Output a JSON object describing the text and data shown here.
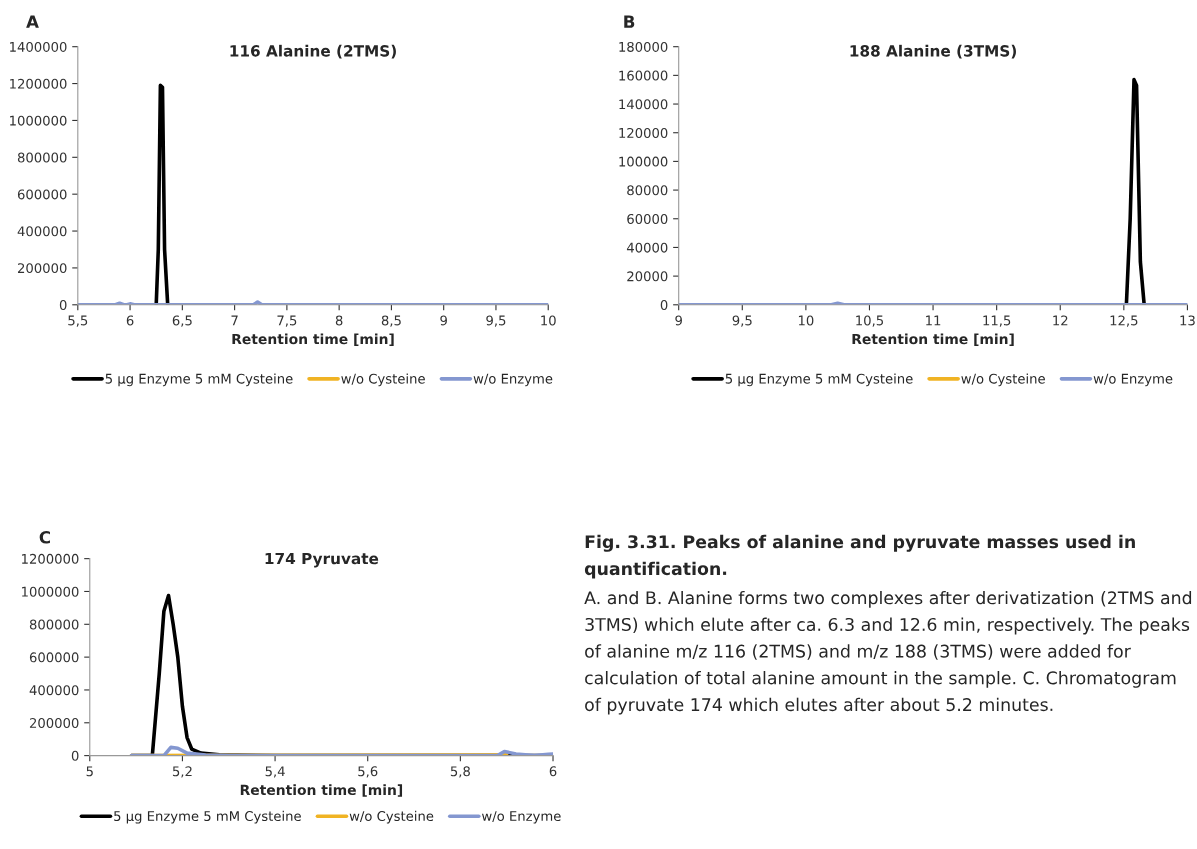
{
  "chart_data": [
    {
      "type": "line",
      "title": "116 Alanine (2TMS)",
      "xlabel": "Retention time [min]",
      "annotations": [
        "A"
      ],
      "legend": "bottom",
      "grid": false,
      "marker": "none",
      "line_style": "solid",
      "xlim": [
        5.5,
        10
      ],
      "xticks": [
        {
          "value": 5.5,
          "label": "5,5"
        },
        6,
        {
          "value": 6.5,
          "label": "6,5"
        },
        7,
        {
          "value": 7.5,
          "label": "7,5"
        },
        8,
        {
          "value": 8.5,
          "label": "8,5"
        },
        9,
        {
          "value": 9.5,
          "label": "9,5"
        },
        10
      ],
      "ylim": [
        0,
        1400000
      ],
      "yticks": [
        0,
        200000,
        400000,
        600000,
        800000,
        1000000,
        1200000,
        1400000
      ],
      "series": [
        {
          "name": "5 µg Enzyme 5 mM Cysteine",
          "color": "#000000",
          "x": [
            6.25,
            6.27,
            6.29,
            6.31,
            6.33,
            6.36
          ],
          "values": [
            0,
            300000,
            1190000,
            1180000,
            300000,
            0
          ]
        },
        {
          "name": "w/o Cysteine",
          "color": "#f0b323"
        },
        {
          "name": "w/o Enzyme",
          "color": "#8497d0",
          "x": [
            5.5,
            5.86,
            5.9,
            5.94,
            5.97,
            6.0,
            6.04,
            7.18,
            7.22,
            7.26,
            10
          ],
          "values": [
            0,
            0,
            8000,
            0,
            0,
            5000,
            0,
            0,
            15000,
            0,
            0
          ]
        }
      ]
    },
    {
      "type": "line",
      "title": "188 Alanine (3TMS)",
      "xlabel": "Retention time [min]",
      "annotations": [
        "B"
      ],
      "legend": "bottom",
      "grid": false,
      "marker": "none",
      "line_style": "solid",
      "xlim": [
        9,
        13
      ],
      "xticks": [
        9,
        {
          "value": 9.5,
          "label": "9,5"
        },
        10,
        {
          "value": 10.5,
          "label": "10,5"
        },
        11,
        {
          "value": 11.5,
          "label": "11,5"
        },
        12,
        {
          "value": 12.5,
          "label": "12,5"
        },
        13
      ],
      "ylim": [
        0,
        180000
      ],
      "yticks": [
        0,
        20000,
        40000,
        60000,
        80000,
        100000,
        120000,
        140000,
        160000,
        180000
      ],
      "series": [
        {
          "name": "5 µg Enzyme 5 mM Cysteine",
          "color": "#000000",
          "x": [
            12.52,
            12.55,
            12.58,
            12.6,
            12.63,
            12.66
          ],
          "values": [
            0,
            60000,
            157000,
            153000,
            30000,
            0
          ]
        },
        {
          "name": "w/o Cysteine",
          "color": "#f0b323"
        },
        {
          "name": "w/o Enzyme",
          "color": "#8497d0",
          "x": [
            9,
            10.2,
            10.25,
            10.3,
            13
          ],
          "values": [
            0,
            0,
            1000,
            0,
            0
          ]
        }
      ]
    },
    {
      "type": "line",
      "title": "174 Pyruvate",
      "xlabel": "Retention time [min]",
      "annotations": [
        "C"
      ],
      "legend": "bottom",
      "grid": false,
      "marker": "none",
      "line_style": "solid",
      "xlim": [
        5,
        6
      ],
      "xticks": [
        5,
        {
          "value": 5.2,
          "label": "5,2"
        },
        {
          "value": 5.4,
          "label": "5,4"
        },
        {
          "value": 5.6,
          "label": "5,6"
        },
        {
          "value": 5.8,
          "label": "5,8"
        },
        6
      ],
      "ylim": [
        0,
        1200000
      ],
      "yticks": [
        0,
        200000,
        400000,
        600000,
        800000,
        1000000,
        1200000
      ],
      "series": [
        {
          "name": "5 µg Enzyme 5 mM Cysteine",
          "color": "#000000",
          "x": [
            5.09,
            5.135,
            5.15,
            5.16,
            5.17,
            5.18,
            5.19,
            5.2,
            5.21,
            5.22,
            5.24,
            5.28,
            5.4,
            6
          ],
          "values": [
            0,
            0,
            500000,
            880000,
            975000,
            800000,
            600000,
            300000,
            110000,
            40000,
            15000,
            5000,
            0,
            0
          ]
        },
        {
          "name": "w/o Cysteine",
          "color": "#f0b323",
          "x": [
            5.09,
            5.9
          ],
          "values": [
            0,
            5000
          ]
        },
        {
          "name": "w/o Enzyme",
          "color": "#8497d0",
          "x": [
            5.09,
            5.16,
            5.175,
            5.19,
            5.21,
            5.25,
            5.3,
            5.88,
            5.895,
            5.92,
            5.96,
            5.99,
            6
          ],
          "values": [
            0,
            0,
            50000,
            45000,
            15000,
            3000,
            0,
            0,
            25000,
            10000,
            0,
            8000,
            10000
          ]
        }
      ]
    },
    {
      "type": "other",
      "annotations": [
        "Fig. 3.31. Peaks of alanine and pyruvate masses used in quantification.",
        "A. and B. Alanine forms two complexes after derivatization (2TMS and 3TMS) which elute after ca. 6.3 and 12.6 min, respectively. The peaks of alanine m/z 116 (2TMS) and m/z 188 (3TMS) were added for calculation of total alanine amount in the sample. C. Chromatogram of pyruvate 174 which elutes after about 5.2 minutes."
      ]
    }
  ]
}
